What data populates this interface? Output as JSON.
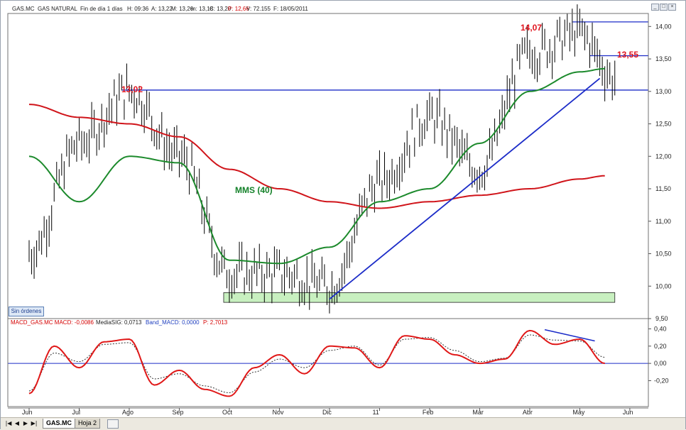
{
  "header": {
    "symbol": "GAS.MC",
    "name": "GAS NATURAL",
    "period": "Fin de día 1 días",
    "h": "H: 09:36",
    "a": "A: 13,22",
    "m1": "M: 13,26",
    "m2": "m: 13,18",
    "c": "C: 13,20",
    "p": "P: 12,66",
    "v": "V: 72.155",
    "f": "F: 18/05/2011"
  },
  "macd_header": {
    "macd": "MACD_GAS.MC MACD: -0,0086",
    "signal": "MediaSIG: 0,0713",
    "band": "Band_MACD: 0,0000",
    "p": "P: 2,7013"
  },
  "buttons": {
    "sin_ordenes": "Sin órdenes"
  },
  "tabs": [
    "GAS.MC",
    "Hoja 2"
  ],
  "nav": [
    "|◀",
    "◀",
    "▶",
    "▶|"
  ],
  "colors": {
    "price_bars": "#000000",
    "mms40": "#1c8a2c",
    "ma_long": "#d0141a",
    "trendline": "#1c2cc8",
    "support_box": "#c8f0c0",
    "macd": "#e01818",
    "signal": "#333333",
    "annotation": "#e0141e"
  },
  "chart_data": [
    {
      "type": "line",
      "title": "",
      "x_labels": [
        "Jun",
        "Jul",
        "Ago",
        "Sep",
        "Oct",
        "Nov",
        "Dic",
        "11",
        "Feb",
        "Mar",
        "Abr",
        "May",
        "Jun"
      ],
      "ylim": [
        9.5,
        14.2
      ],
      "y_ticks": [
        "9,50",
        "10,00",
        "10,50",
        "11,00",
        "11,50",
        "12,00",
        "12,50",
        "13,00",
        "13,50",
        "14,00"
      ],
      "annotations": {
        "high_aug": "13,02",
        "high_may": "14,07",
        "level_recent": "13,55",
        "mms": "MMS (40)"
      },
      "levels": {
        "h1": 13.02,
        "h2": 14.07,
        "h3": 13.55
      },
      "support_zone": [
        9.75,
        9.9
      ],
      "trendline": {
        "from": [
          "Dic",
          9.8
        ],
        "to": [
          "May",
          13.2
        ]
      },
      "series": [
        {
          "name": "price",
          "x": [
            0,
            1,
            2,
            3,
            4,
            5,
            6,
            7,
            8,
            9,
            10,
            11,
            11.7
          ],
          "values": [
            10.5,
            12.2,
            13.0,
            12.0,
            10.2,
            10.2,
            10.0,
            11.6,
            12.6,
            11.8,
            13.6,
            13.9,
            13.2
          ]
        },
        {
          "name": "MMS (40)",
          "x": [
            0,
            1,
            2,
            3,
            4,
            5,
            6,
            7,
            8,
            9,
            10,
            11,
            11.5
          ],
          "values": [
            12.0,
            11.3,
            12.0,
            11.9,
            10.4,
            10.35,
            10.6,
            11.3,
            11.5,
            12.2,
            13.0,
            13.3,
            13.35
          ]
        },
        {
          "name": "ma_long",
          "x": [
            0,
            1,
            2,
            3,
            4,
            5,
            6,
            7,
            8,
            9,
            10,
            11,
            11.5
          ],
          "values": [
            12.8,
            12.6,
            12.5,
            12.3,
            11.8,
            11.5,
            11.3,
            11.2,
            11.3,
            11.4,
            11.5,
            11.65,
            11.7
          ]
        }
      ]
    },
    {
      "type": "line",
      "title": "",
      "ylim": [
        -0.5,
        0.42
      ],
      "y_ticks": [
        "0,40",
        "0,20",
        "0,00",
        "-0,20"
      ],
      "series": [
        {
          "name": "MACD",
          "x": [
            0,
            0.5,
            1,
            1.5,
            2,
            2.5,
            3,
            3.5,
            4,
            4.5,
            5,
            5.5,
            6,
            6.5,
            7,
            7.5,
            8,
            8.5,
            9,
            9.5,
            10,
            10.5,
            11,
            11.5
          ],
          "values": [
            -0.35,
            0.2,
            -0.05,
            0.25,
            0.28,
            -0.25,
            -0.08,
            -0.3,
            -0.38,
            -0.05,
            0.1,
            -0.12,
            0.2,
            0.18,
            -0.05,
            0.32,
            0.28,
            0.1,
            0.0,
            0.05,
            0.38,
            0.22,
            0.28,
            0.0
          ]
        },
        {
          "name": "MediaSIG",
          "x": [
            0,
            0.5,
            1,
            1.5,
            2,
            2.5,
            3,
            3.5,
            4,
            4.5,
            5,
            5.5,
            6,
            6.5,
            7,
            7.5,
            8,
            8.5,
            9,
            9.5,
            10,
            10.5,
            11,
            11.5
          ],
          "values": [
            -0.32,
            0.12,
            0.02,
            0.22,
            0.24,
            -0.18,
            -0.12,
            -0.26,
            -0.34,
            -0.1,
            0.05,
            -0.05,
            0.15,
            0.2,
            -0.02,
            0.28,
            0.3,
            0.15,
            0.02,
            0.06,
            0.33,
            0.27,
            0.26,
            0.07
          ]
        }
      ]
    }
  ]
}
